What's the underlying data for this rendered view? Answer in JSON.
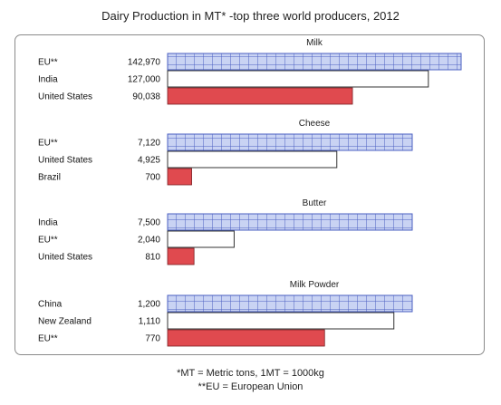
{
  "chart_data": {
    "type": "bar",
    "title": "Dairy Production in MT* -top three world producers, 2012",
    "groups": [
      {
        "name": "Milk",
        "bars": [
          {
            "label": "EU**",
            "value_text": "142,970",
            "value": 142970,
            "style": "grid"
          },
          {
            "label": "India",
            "value_text": "127,000",
            "value": 127000,
            "style": "outline"
          },
          {
            "label": "United States",
            "value_text": "90,038",
            "value": 90038,
            "style": "red"
          }
        ]
      },
      {
        "name": "Cheese",
        "bars": [
          {
            "label": "EU**",
            "value_text": "7,120",
            "value": 7120,
            "style": "grid"
          },
          {
            "label": "United States",
            "value_text": "4,925",
            "value": 4925,
            "style": "outline"
          },
          {
            "label": "Brazil",
            "value_text": "700",
            "value": 700,
            "style": "red"
          }
        ]
      },
      {
        "name": "Butter",
        "bars": [
          {
            "label": "India",
            "value_text": "7,500",
            "value": 7500,
            "style": "grid"
          },
          {
            "label": "EU**",
            "value_text": "2,040",
            "value": 2040,
            "style": "outline"
          },
          {
            "label": "United States",
            "value_text": "810",
            "value": 810,
            "style": "red"
          }
        ]
      },
      {
        "name": "Milk Powder",
        "bars": [
          {
            "label": "China",
            "value_text": "1,200",
            "value": 1200,
            "style": "grid"
          },
          {
            "label": "New Zealand",
            "value_text": "1,110",
            "value": 1110,
            "style": "outline"
          },
          {
            "label": "EU**",
            "value_text": "770",
            "value": 770,
            "style": "red"
          }
        ]
      }
    ]
  },
  "footnotes": {
    "metric_tons": "*MT = Metric tons, 1MT = 1000kg",
    "european_union": "**EU = European Union"
  },
  "colors": {
    "grid_fill": "#c9d3f3",
    "grid_line": "#4a5fc1",
    "red_fill": "#e04a4f",
    "outline_stroke": "#333333"
  }
}
